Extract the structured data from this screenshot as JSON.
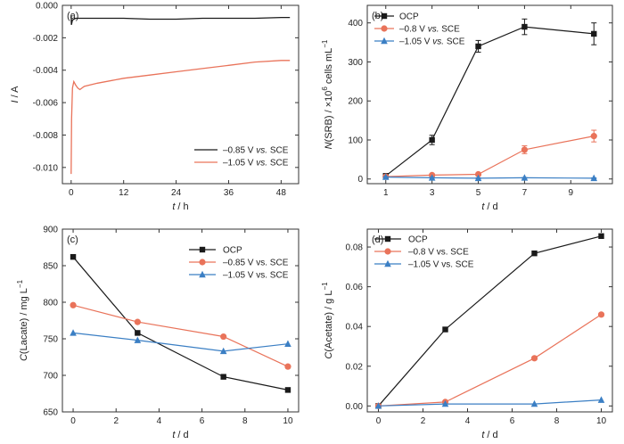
{
  "chart_data": [
    {
      "panel": "(a)",
      "type": "line",
      "xlabel_var": "t",
      "xlabel_unit": " / h",
      "ylabel_var": "I",
      "ylabel_unit": " / A",
      "xlim": [
        -2,
        52
      ],
      "ylim": [
        -0.011,
        0.0
      ],
      "xticks": [
        0,
        12,
        24,
        36,
        48
      ],
      "xtick_labels": [
        "0",
        "12",
        "24",
        "36",
        "48"
      ],
      "yticks": [
        0.0,
        -0.002,
        -0.004,
        -0.006,
        -0.008,
        -0.01
      ],
      "ytick_labels": [
        "0.000",
        "-0.002",
        "-0.004",
        "-0.006",
        "-0.008",
        "-0.010"
      ],
      "legend_position": "bottom-right",
      "series": [
        {
          "name": "–0.85 V vs. SCE",
          "label_main": "–0.85 V ",
          "label_italic": "vs.",
          "label_tail": " SCE",
          "color": "#1a1a1a",
          "x": [
            0,
            0.05,
            0.3,
            1,
            3,
            6,
            12,
            18,
            24,
            30,
            36,
            42,
            48,
            50
          ],
          "y": [
            -0.0006,
            -0.0012,
            -0.0009,
            -0.0008,
            -0.0008,
            -0.0008,
            -0.0008,
            -0.00085,
            -0.00085,
            -0.0008,
            -0.0008,
            -0.0008,
            -0.00075,
            -0.00075
          ]
        },
        {
          "name": "–1.05 V vs. SCE",
          "label_main": "–1.05 V ",
          "label_italic": "vs.",
          "label_tail": " SCE",
          "color": "#e9735a",
          "x": [
            0,
            0.1,
            0.3,
            0.6,
            1,
            1.5,
            2,
            3,
            6,
            12,
            18,
            24,
            30,
            36,
            42,
            48,
            50
          ],
          "y": [
            -0.0104,
            -0.007,
            -0.0051,
            -0.0047,
            -0.0049,
            -0.0051,
            -0.0052,
            -0.005,
            -0.0048,
            -0.0045,
            -0.0043,
            -0.0041,
            -0.0039,
            -0.0037,
            -0.0035,
            -0.0034,
            -0.0034
          ]
        }
      ]
    },
    {
      "panel": "(b)",
      "type": "line",
      "xlabel_var": "t",
      "xlabel_unit": " / d",
      "ylabel_var": "N",
      "ylabel_rest": "(SRB) / ×10",
      "ylabel_sup": "6",
      "ylabel_tail": " cells mL",
      "ylabel_sup2": "−1",
      "xlim": [
        0.2,
        10.8
      ],
      "ylim": [
        -12,
        445
      ],
      "xticks": [
        1,
        3,
        5,
        7,
        9
      ],
      "xtick_labels": [
        "1",
        "3",
        "5",
        "7",
        "9"
      ],
      "yticks": [
        0,
        100,
        200,
        300,
        400
      ],
      "ytick_labels": [
        "0",
        "100",
        "200",
        "300",
        "400"
      ],
      "legend_position": "top-left",
      "series": [
        {
          "name": "OCP",
          "label_main": "OCP",
          "label_italic": "",
          "label_tail": "",
          "color": "#1a1a1a",
          "marker": "square",
          "x": [
            1,
            3,
            5,
            7,
            10
          ],
          "y": [
            8,
            100,
            340,
            390,
            372
          ],
          "err": [
            3,
            12,
            15,
            20,
            28
          ]
        },
        {
          "name": "–0.8 V vs. SCE",
          "label_main": "–0.8 V ",
          "label_italic": "vs.",
          "label_tail": " SCE",
          "color": "#e9735a",
          "marker": "circle",
          "x": [
            1,
            3,
            5,
            7,
            10
          ],
          "y": [
            6,
            10,
            12,
            75,
            110
          ],
          "err": [
            2,
            3,
            3,
            10,
            15
          ]
        },
        {
          "name": "–1.05 V vs. SCE",
          "label_main": "–1.05 V ",
          "label_italic": "vs.",
          "label_tail": " SCE",
          "color": "#3b7fc4",
          "marker": "triangle",
          "x": [
            1,
            3,
            5,
            7,
            10
          ],
          "y": [
            5,
            3,
            2,
            3,
            2
          ],
          "err": [
            1,
            1,
            1,
            1,
            1
          ]
        }
      ]
    },
    {
      "panel": "(c)",
      "type": "line",
      "xlabel_var": "t",
      "xlabel_unit": " / d",
      "ylabel_var": "C",
      "ylabel_rest": "(Lacate) / mg L",
      "ylabel_sup": "−1",
      "xlim": [
        -0.5,
        10.5
      ],
      "ylim": [
        650,
        900
      ],
      "xticks": [
        0,
        2,
        4,
        6,
        8,
        10
      ],
      "xtick_labels": [
        "0",
        "2",
        "4",
        "6",
        "8",
        "10"
      ],
      "yticks": [
        650,
        700,
        750,
        800,
        850,
        900
      ],
      "ytick_labels": [
        "650",
        "700",
        "750",
        "800",
        "850",
        "900"
      ],
      "legend_position": "top-right",
      "series": [
        {
          "name": "OCP",
          "label_main": "OCP",
          "label_italic": "",
          "label_tail": "",
          "color": "#1a1a1a",
          "marker": "square",
          "x": [
            0,
            3,
            7,
            10
          ],
          "y": [
            862,
            758,
            698,
            680
          ]
        },
        {
          "name": "–0.85 V vs. SCE",
          "label_main": "–0.85 V vs. SCE",
          "label_italic": "",
          "label_tail": "",
          "color": "#e9735a",
          "marker": "circle",
          "x": [
            0,
            3,
            7,
            10
          ],
          "y": [
            796,
            773,
            753,
            712
          ]
        },
        {
          "name": "–1.05 V vs. SCE",
          "label_main": "–1.05 V vs. SCE",
          "label_italic": "",
          "label_tail": "",
          "color": "#3b7fc4",
          "marker": "triangle",
          "x": [
            0,
            3,
            7,
            10
          ],
          "y": [
            758,
            748,
            733,
            743
          ]
        }
      ]
    },
    {
      "panel": "(d)",
      "type": "line",
      "xlabel_var": "t",
      "xlabel_unit": " / d",
      "ylabel_var": "C",
      "ylabel_rest": "(Acetate) / g L",
      "ylabel_sup": "−1",
      "xlim": [
        -0.5,
        10.5
      ],
      "ylim": [
        -0.003,
        0.089
      ],
      "xticks": [
        0,
        2,
        4,
        6,
        8,
        10
      ],
      "xtick_labels": [
        "0",
        "2",
        "4",
        "6",
        "8",
        "10"
      ],
      "yticks": [
        0.0,
        0.02,
        0.04,
        0.06,
        0.08
      ],
      "ytick_labels": [
        "0.00",
        "0.02",
        "0.04",
        "0.06",
        "0.08"
      ],
      "legend_position": "top-left",
      "series": [
        {
          "name": "OCP",
          "label_main": "OCP",
          "label_italic": "",
          "label_tail": "",
          "color": "#1a1a1a",
          "marker": "square",
          "x": [
            0,
            3,
            7,
            10
          ],
          "y": [
            0.0,
            0.0385,
            0.0768,
            0.0855
          ]
        },
        {
          "name": "–0.8 V vs. SCE",
          "label_main": "–0.8 V vs. SCE",
          "label_italic": "",
          "label_tail": "",
          "color": "#e9735a",
          "marker": "circle",
          "x": [
            0,
            3,
            7,
            10
          ],
          "y": [
            0.0,
            0.002,
            0.024,
            0.046
          ]
        },
        {
          "name": "–1.05 V vs. SCE",
          "label_main": "–1.05 V vs. SCE",
          "label_italic": "",
          "label_tail": "",
          "color": "#3b7fc4",
          "marker": "triangle",
          "x": [
            0,
            3,
            7,
            10
          ],
          "y": [
            0.0,
            0.001,
            0.001,
            0.003
          ]
        }
      ]
    }
  ]
}
